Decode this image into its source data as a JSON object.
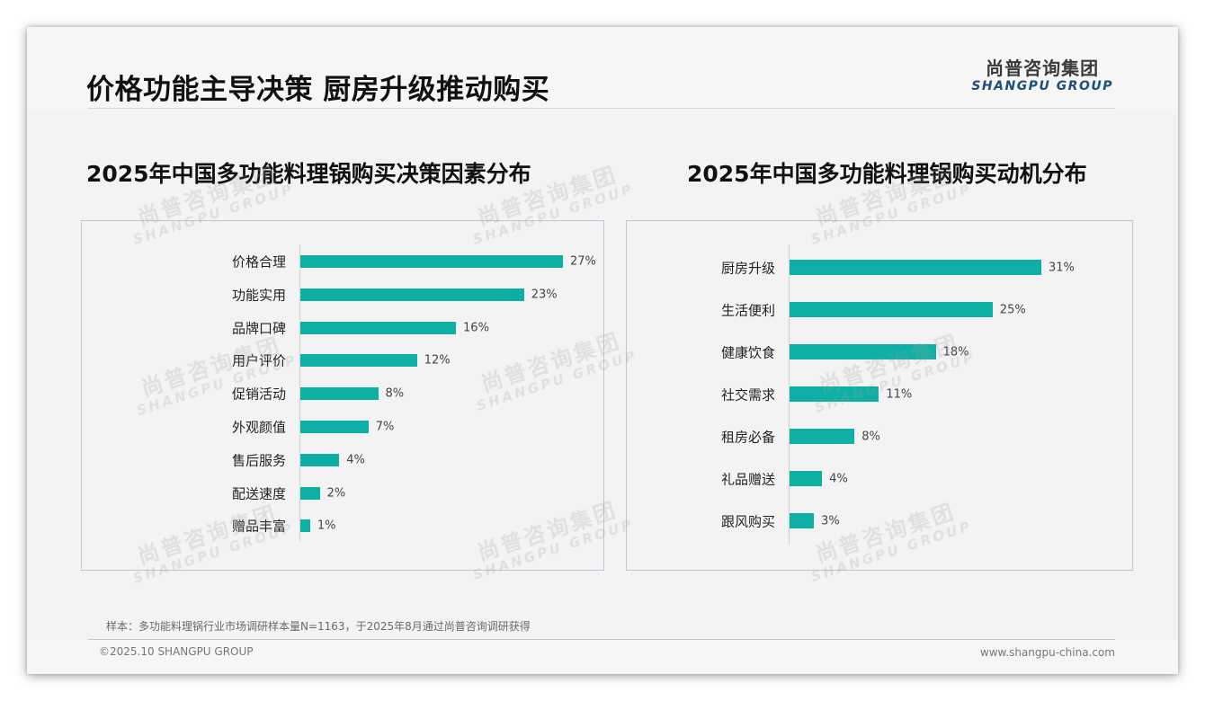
{
  "slide": {
    "title": "价格功能主导决策 厨房升级推动购买",
    "logo": {
      "cn": "尚普咨询集团",
      "en": "SHANGPU GROUP"
    },
    "watermark": {
      "cn": "尚普咨询集团",
      "en": "SHANGPU GROUP"
    },
    "footnote": "样本：多功能料理锅行业市场调研样本量N=1163，于2025年8月通过尚普咨询调研获得",
    "copyright": "©2025.10 SHANGPU GROUP",
    "website": "www.shangpu-china.com",
    "bar_color": "#0eb0a6"
  },
  "chart_data": [
    {
      "type": "bar",
      "orientation": "horizontal",
      "title": "2025年中国多功能料理锅购买决策因素分布",
      "categories": [
        "价格合理",
        "功能实用",
        "品牌口碑",
        "用户评价",
        "促销活动",
        "外观颜值",
        "售后服务",
        "配送速度",
        "赠品丰富"
      ],
      "values": [
        27,
        23,
        16,
        12,
        8,
        7,
        4,
        2,
        1
      ],
      "labels": [
        "27%",
        "23%",
        "16%",
        "12%",
        "8%",
        "7%",
        "4%",
        "2%",
        "1%"
      ],
      "xlabel": "",
      "ylabel": "",
      "unit": "%",
      "grid": false,
      "legend": null
    },
    {
      "type": "bar",
      "orientation": "horizontal",
      "title": "2025年中国多功能料理锅购买动机分布",
      "categories": [
        "厨房升级",
        "生活便利",
        "健康饮食",
        "社交需求",
        "租房必备",
        "礼品赠送",
        "跟风购买"
      ],
      "values": [
        31,
        25,
        18,
        11,
        8,
        4,
        3
      ],
      "labels": [
        "31%",
        "25%",
        "18%",
        "11%",
        "8%",
        "4%",
        "3%"
      ],
      "xlabel": "",
      "ylabel": "",
      "unit": "%",
      "grid": false,
      "legend": null
    }
  ]
}
